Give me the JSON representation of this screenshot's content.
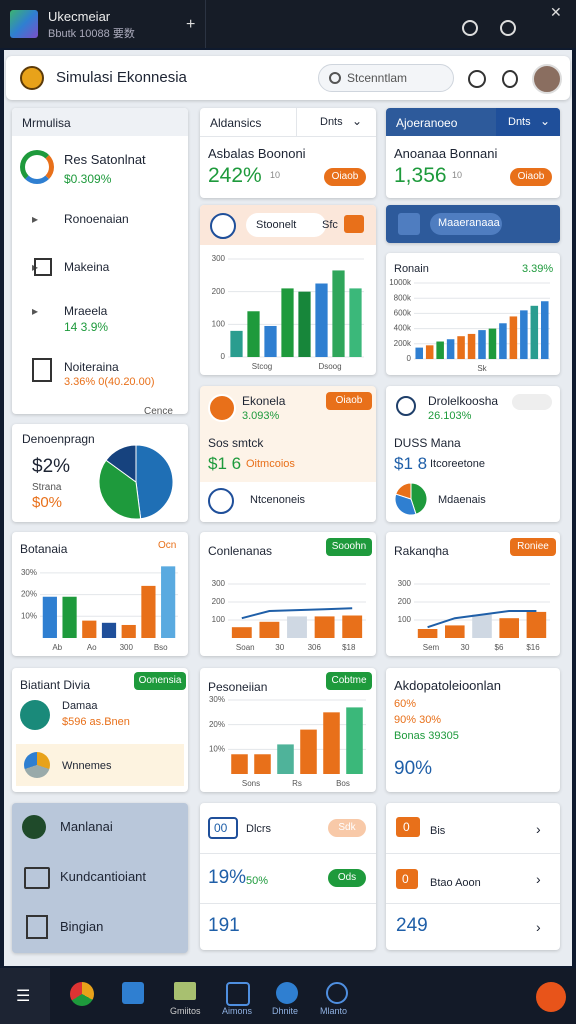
{
  "window": {
    "title": "Ukecmeiar",
    "subtitle": "Bbutk 10088 要数"
  },
  "header": {
    "title": "Simulasi Ekonnesia",
    "search": "Stcenntlam"
  },
  "sidebar": {
    "title": "Mrmulisa",
    "items": [
      {
        "label": "Res Satonlnat",
        "value": "$0.309%"
      },
      {
        "label": "Ronoenaian"
      },
      {
        "label": "Makeina"
      },
      {
        "label": "Mraeela",
        "value": "14 3.9%"
      },
      {
        "label": "Noiteraina",
        "value": "3.36% 0(40.20.00)"
      }
    ],
    "more": "Cence"
  },
  "share": {
    "title": "Denoenpragn",
    "value": "$2%",
    "label": "Strana",
    "value2": "$0%",
    "pie": {
      "values": [
        48,
        37,
        15
      ],
      "colors": [
        "#1f6fb5",
        "#1e9a3c",
        "#16427e"
      ]
    }
  },
  "stat1": {
    "tab": "Aldansics",
    "select": "Dnts",
    "title": "Asbalas Boononi",
    "value": "242%",
    "note": "10",
    "button": "Oiaob"
  },
  "stat2": {
    "tab": "Ajoeranoeo",
    "select": "Dnts",
    "title": "Anoanaa Bonnani",
    "value": "1,356",
    "note": "10",
    "button": "Oiaob"
  },
  "chart1": {
    "search": "Stoonelt",
    "tag": "Sfc",
    "ylim": [
      0,
      300
    ],
    "yticks": [
      0,
      100,
      200,
      300
    ],
    "values": [
      80,
      140,
      95,
      210,
      200,
      225,
      265,
      210
    ],
    "colors": [
      "#2a9d8f",
      "#1e9a3c",
      "#2f7fd1",
      "#1e9a3c",
      "#17863a",
      "#2f7fd1",
      "#2fa65a",
      "#3bb87a"
    ],
    "xlabels": [
      "Stcog",
      "Dsoog"
    ]
  },
  "banner": {
    "label": "Maaeranaaa"
  },
  "chart2": {
    "title": "Ronain",
    "value": "3.39%",
    "ylim": [
      0,
      1000
    ],
    "yticks": [
      0,
      {
        "value": 200,
        "label": "200k"
      },
      {
        "value": 400,
        "label": "400k"
      },
      {
        "value": 600,
        "label": "600k"
      },
      {
        "value": 800,
        "label": "800k"
      },
      {
        "value": 1000,
        "label": "1000k"
      }
    ],
    "values": [
      150,
      180,
      230,
      260,
      300,
      330,
      380,
      400,
      470,
      560,
      640,
      700,
      760
    ],
    "colors": [
      "#2f7fd1",
      "#e8701a",
      "#1e9a3c",
      "#2f7fd1",
      "#e8701a",
      "#e8701a",
      "#2f7fd1",
      "#1e9a3c",
      "#2f7fd1",
      "#e8701a",
      "#2f7fd1",
      "#2a9d8f",
      "#2f7fd1"
    ],
    "xlabels": [
      "Sk"
    ]
  },
  "eco1": {
    "title": "Ekonela",
    "value": "3.093%",
    "button": "Oiaob",
    "label": "Sos smtck",
    "amount": "$1 6",
    "amount_note": "Oitmcoios",
    "link": "Ntcenoneis"
  },
  "eco2": {
    "title": "Drolelkoosha",
    "value": "26.103%",
    "label": "DUSS Mana",
    "amount": "$1 8",
    "amount_note": "Itcoreetone",
    "link": "Mdaenais",
    "pie": {
      "values": [
        45,
        35,
        20
      ],
      "colors": [
        "#1e9a3c",
        "#2f7fd1",
        "#e8701a"
      ]
    }
  },
  "chart3": {
    "title": "Botanaia",
    "badge": "Ocn",
    "ylim": [
      0,
      35
    ],
    "yticks": [
      {
        "value": 10,
        "label": "10%"
      },
      {
        "value": 20,
        "label": "20%"
      },
      {
        "value": 30,
        "label": "30%"
      }
    ],
    "values": [
      19,
      19,
      8,
      7,
      6,
      24,
      33
    ],
    "colors": [
      "#2f7fd1",
      "#1e9a3c",
      "#e8701a",
      "#1f4f9a",
      "#e8701a",
      "#e8701a",
      "#5aaae0"
    ],
    "xlabels": [
      "Ab",
      "Ao",
      "300",
      "Bso"
    ]
  },
  "chart4": {
    "title": "Conlenanas",
    "button": "Sooohn",
    "ylim": [
      0,
      400
    ],
    "yticks": [
      100,
      200,
      300
    ],
    "values": [
      60,
      90,
      120,
      120,
      125
    ],
    "colors": [
      "#e8701a",
      "#e8701a",
      "#cfd8e3",
      "#e8701a",
      "#e8701a"
    ],
    "line": {
      "values": [
        110,
        150,
        155,
        160,
        165
      ],
      "color": "#1f5fa8"
    },
    "xlabels": [
      "Soan",
      "30",
      "306",
      "$18"
    ]
  },
  "chart5": {
    "title": "Rakanqha",
    "button": "Roniee",
    "ylim": [
      0,
      400
    ],
    "yticks": [
      100,
      200,
      300
    ],
    "values": [
      50,
      70,
      130,
      110,
      145
    ],
    "colors": [
      "#e8701a",
      "#e8701a",
      "#cfd8e3",
      "#e8701a",
      "#e8701a"
    ],
    "line": {
      "values": [
        60,
        110,
        130,
        150,
        150
      ],
      "color": "#1f5fa8"
    },
    "xlabels": [
      "Sem",
      "30",
      "$6",
      "$16"
    ]
  },
  "profile": {
    "title": "Biatiant Divia",
    "button": "Oonensia",
    "name": "Damaa",
    "value": "$596 as.Bnen",
    "link": "Wnnemes"
  },
  "chart6": {
    "title": "Pesoneiian",
    "button": "Cobtme",
    "ylim": [
      0,
      300
    ],
    "yticks": [
      {
        "value": 100,
        "label": "10%"
      },
      {
        "value": 200,
        "label": "20%"
      },
      {
        "value": 300,
        "label": "30%"
      }
    ],
    "values": [
      80,
      80,
      120,
      180,
      250,
      270
    ],
    "colors": [
      "#e8701a",
      "#e8701a",
      "#4fb39a",
      "#e8701a",
      "#e8701a",
      "#3bb87a"
    ],
    "xlabels": [
      "Sons",
      "Rs",
      "Bos"
    ]
  },
  "summary": {
    "title": "Akdopatoleioonlan",
    "lines": [
      "60%",
      "90% 30%",
      "Bonas 39305"
    ],
    "value": "90%"
  },
  "menu": {
    "items": [
      "Manlanai",
      "Kundcantioiant",
      "Bingian"
    ]
  },
  "list1": {
    "rows": [
      {
        "badge": "00",
        "label": "Dlcrs",
        "pill": "Sdk"
      },
      {
        "value": "19%",
        "label": "50%",
        "pill": "Ods"
      },
      {
        "value": "191"
      }
    ]
  },
  "list2": {
    "rows": [
      {
        "badge": "0",
        "label": "Bis"
      },
      {
        "badge": "0",
        "label": "Btao Aoon"
      },
      {
        "value": "249"
      }
    ]
  },
  "taskbar": {
    "items": [
      "Gmiitos",
      "Aimons",
      "Dhnite",
      "Mlanto"
    ]
  }
}
